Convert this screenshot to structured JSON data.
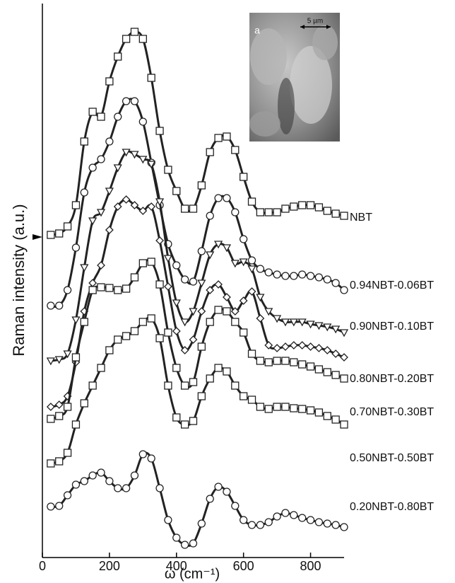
{
  "chart_data": {
    "type": "line",
    "xlabel": "ω (cm⁻¹)",
    "ylabel": "Raman intensity (a.u.)",
    "xlim": [
      0,
      900
    ],
    "xticks": [
      0,
      200,
      400,
      600,
      800
    ],
    "ylim": [
      0,
      783
    ],
    "inset": {
      "label": "a",
      "scale": "5 µm"
    },
    "x": [
      25,
      50,
      75,
      100,
      125,
      150,
      175,
      200,
      225,
      250,
      275,
      300,
      325,
      350,
      375,
      400,
      425,
      450,
      475,
      500,
      525,
      550,
      575,
      600,
      625,
      650,
      675,
      700,
      725,
      750,
      775,
      800,
      825,
      850,
      875,
      900
    ],
    "series": [
      {
        "name": "NBT",
        "marker": "square",
        "color": "#222",
        "values": [
          456,
          458,
          468,
          498,
          588,
          630,
          623,
          673,
          708,
          733,
          743,
          733,
          678,
          603,
          548,
          518,
          493,
          493,
          526,
          573,
          593,
          595,
          576,
          538,
          503,
          488,
          488,
          488,
          493,
          496,
          498,
          498,
          495,
          490,
          486,
          483
        ]
      },
      {
        "name": "0.94NBT-0.06BT",
        "marker": "circle",
        "color": "#222",
        "values": [
          356,
          356,
          378,
          438,
          516,
          551,
          563,
          588,
          623,
          645,
          645,
          616,
          558,
          498,
          443,
          413,
          393,
          390,
          433,
          483,
          508,
          508,
          488,
          450,
          420,
          408,
          403,
          400,
          398,
          398,
          400,
          398,
          396,
          393,
          388,
          378
        ]
      },
      {
        "name": "0.90NBT-0.10BT",
        "marker": "triangle",
        "color": "#222",
        "values": [
          278,
          280,
          288,
          336,
          410,
          476,
          488,
          518,
          551,
          573,
          570,
          563,
          556,
          503,
          423,
          360,
          333,
          348,
          388,
          428,
          443,
          438,
          416,
          418,
          408,
          368,
          348,
          338,
          333,
          333,
          333,
          330,
          328,
          326,
          323,
          318
        ]
      },
      {
        "name": "0.80NBT-0.20BT",
        "marker": "diamond",
        "color": "#222",
        "values": [
          213,
          216,
          228,
          276,
          348,
          388,
          413,
          463,
          496,
          506,
          498,
          490,
          496,
          448,
          383,
          320,
          293,
          308,
          348,
          378,
          386,
          368,
          348,
          363,
          376,
          338,
          300,
          296,
          298,
          300,
          300,
          298,
          296,
          293,
          288,
          283
        ]
      },
      {
        "name": "0.70NBT-0.30BT",
        "marker": "square",
        "color": "#222",
        "values": [
          196,
          200,
          213,
          283,
          333,
          378,
          382,
          381,
          378,
          380,
          396,
          416,
          418,
          386,
          318,
          268,
          243,
          248,
          298,
          333,
          350,
          348,
          333,
          318,
          288,
          278,
          276,
          278,
          278,
          276,
          273,
          270,
          266,
          262,
          258,
          253
        ]
      },
      {
        "name": "0.50NBT-0.50BT",
        "marker": "square",
        "color": "#222",
        "values": [
          133,
          136,
          148,
          188,
          218,
          243,
          268,
          293,
          308,
          313,
          320,
          333,
          338,
          310,
          243,
          198,
          188,
          193,
          228,
          253,
          268,
          263,
          243,
          228,
          223,
          213,
          210,
          213,
          213,
          211,
          210,
          208,
          205,
          200,
          195,
          188
        ]
      },
      {
        "name": "0.20NBT-0.80BT",
        "marker": "circle",
        "color": "#222",
        "values": [
          72,
          73,
          88,
          103,
          108,
          116,
          120,
          108,
          98,
          98,
          116,
          146,
          140,
          98,
          53,
          28,
          18,
          20,
          48,
          83,
          100,
          93,
          73,
          53,
          46,
          46,
          50,
          58,
          63,
          60,
          56,
          53,
          50,
          48,
          46,
          43
        ]
      }
    ]
  }
}
